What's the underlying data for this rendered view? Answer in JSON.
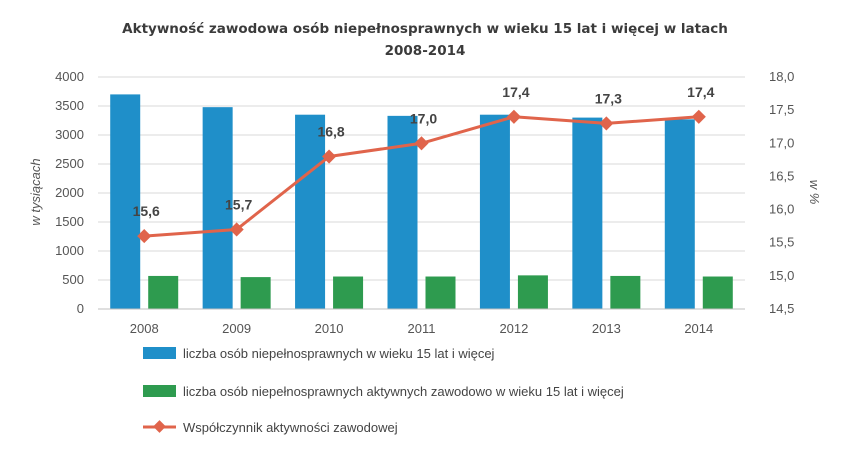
{
  "chart_data": {
    "type": "bar",
    "title_lines": [
      "Aktywność zawodowa osób niepełnosprawnych w wieku 15 lat i więcej w latach",
      "2008-2014"
    ],
    "categories": [
      "2008",
      "2009",
      "2010",
      "2011",
      "2012",
      "2013",
      "2014"
    ],
    "ylabel": "w tysiącach",
    "y2label": "w %",
    "ylim": [
      0,
      4000
    ],
    "y2lim": [
      14.5,
      18.0
    ],
    "yticks": [
      "0",
      "500",
      "1000",
      "1500",
      "2000",
      "2500",
      "3000",
      "3500",
      "4000"
    ],
    "y2ticks": [
      "14,5",
      "15,0",
      "15,5",
      "16,0",
      "16,5",
      "17,0",
      "17,5",
      "18,0"
    ],
    "grid": true,
    "legend_position": "bottom",
    "series": [
      {
        "name": "liczba osób niepełnosprawnych w wieku 15 lat i więcej",
        "type": "bar",
        "color": "#1f8fc9",
        "values": [
          3700,
          3480,
          3350,
          3330,
          3350,
          3300,
          3270
        ]
      },
      {
        "name": "liczba osób niepełnosprawnych aktywnych zawodowo w wieku 15 lat i więcej",
        "type": "bar",
        "color": "#2e9b4f",
        "values": [
          570,
          550,
          560,
          560,
          580,
          570,
          560
        ]
      },
      {
        "name": "Współczynnik aktywności zawodowej",
        "type": "line",
        "axis": "right",
        "color": "#e0644b",
        "values": [
          15.6,
          15.7,
          16.8,
          17.0,
          17.4,
          17.3,
          17.4
        ],
        "labels": [
          "15,6",
          "15,7",
          "16,8",
          "17,0",
          "17,4",
          "17,3",
          "17,4"
        ]
      }
    ]
  }
}
